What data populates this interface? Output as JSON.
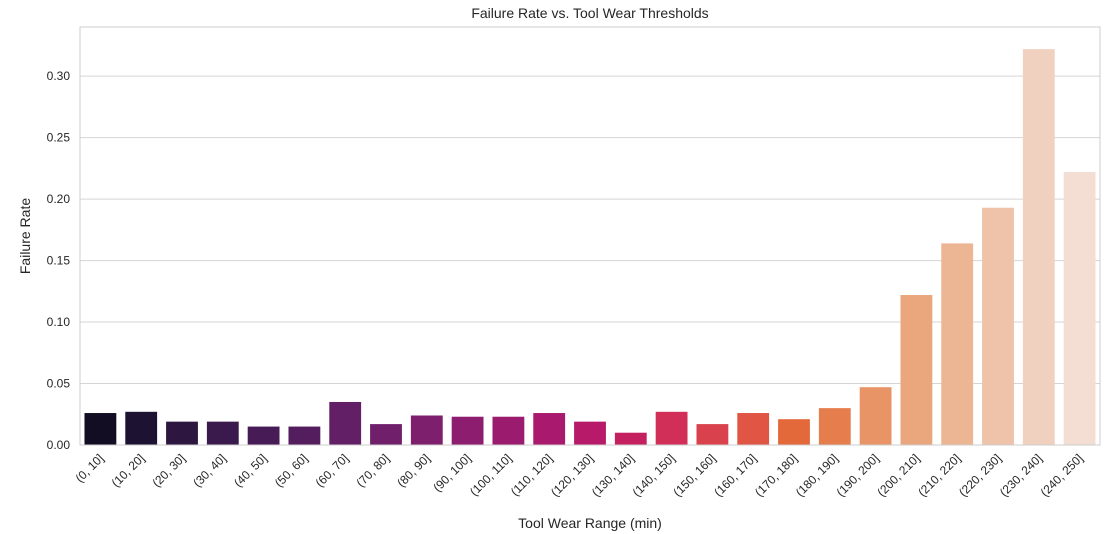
{
  "chart_data": {
    "type": "bar",
    "title": "Failure Rate vs. Tool Wear Thresholds",
    "xlabel": "Tool Wear Range (min)",
    "ylabel": "Failure Rate",
    "ylim": [
      0,
      0.34
    ],
    "yticks": [
      "0.00",
      "0.05",
      "0.10",
      "0.15",
      "0.20",
      "0.25",
      "0.30"
    ],
    "grid": true,
    "categories": [
      "(0, 10]",
      "(10, 20]",
      "(20, 30]",
      "(30, 40]",
      "(40, 50]",
      "(50, 60]",
      "(60, 70]",
      "(70, 80]",
      "(80, 90]",
      "(90, 100]",
      "(100, 110]",
      "(110, 120]",
      "(120, 130]",
      "(130, 140]",
      "(140, 150]",
      "(150, 160]",
      "(160, 170]",
      "(170, 180]",
      "(180, 190]",
      "(190, 200]",
      "(200, 210]",
      "(210, 220]",
      "(220, 230]",
      "(230, 240]",
      "(240, 250]"
    ],
    "values": [
      0.026,
      0.027,
      0.019,
      0.019,
      0.015,
      0.015,
      0.035,
      0.017,
      0.024,
      0.023,
      0.023,
      0.026,
      0.019,
      0.01,
      0.027,
      0.017,
      0.026,
      0.021,
      0.03,
      0.047,
      0.122,
      0.164,
      0.193,
      0.322,
      0.222
    ],
    "colors": [
      "#120d22",
      "#1e1232",
      "#2d1640",
      "#3a1a4d",
      "#471c56",
      "#541e5e",
      "#621f65",
      "#701f6a",
      "#7e1f6d",
      "#8c1d6f",
      "#9b1b6f",
      "#a9196d",
      "#b71a68",
      "#c4205f",
      "#d12f57",
      "#d9414d",
      "#e05543",
      "#e3693a",
      "#e67d4d",
      "#e89466",
      "#eaa77e",
      "#ecb594",
      "#eec3aa",
      "#f0d0bf",
      "#f4ddd2"
    ]
  }
}
